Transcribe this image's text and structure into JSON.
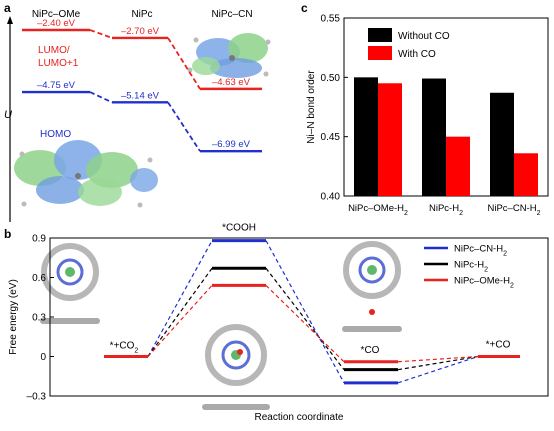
{
  "panels": {
    "a": "a",
    "b": "b",
    "c": "c"
  },
  "panel_a": {
    "y_axis_label": "U",
    "molecules": [
      "NiPc–OMe",
      "NiPc",
      "NiPc–CN"
    ],
    "lumo_label": "LUMO/\nLUMO+1",
    "homo_label": "HOMO",
    "lumo_levels": [
      {
        "molecule": "NiPc–OMe",
        "energy_eV": -2.4,
        "label": "–2.40 eV"
      },
      {
        "molecule": "NiPc",
        "energy_eV": -2.7,
        "label": "–2.70 eV"
      },
      {
        "molecule": "NiPc–CN",
        "energy_eV": -4.63,
        "label": "–4.63 eV"
      }
    ],
    "homo_levels": [
      {
        "molecule": "NiPc–OMe",
        "energy_eV": -4.75,
        "label": "–4.75 eV"
      },
      {
        "molecule": "NiPc",
        "energy_eV": -5.14,
        "label": "–5.14 eV"
      },
      {
        "molecule": "NiPc–CN",
        "energy_eV": -6.99,
        "label": "–6.99 eV"
      }
    ],
    "colors": {
      "lumo": "#e8221f",
      "homo": "#1f2fd0"
    }
  },
  "chart_data": [
    {
      "panel": "c",
      "type": "bar",
      "categories": [
        "NiPc–OMe-H2",
        "NiPc-H2",
        "NiPc–CN-H2"
      ],
      "ylabel": "Ni–N bond order",
      "xlabel": "",
      "ylim": [
        0.4,
        0.55
      ],
      "yticks": [
        0.4,
        0.45,
        0.5,
        0.55
      ],
      "ytick_labels": [
        "0.40",
        "0.45",
        "0.50",
        "0.55"
      ],
      "legend_position": "top-center",
      "series": [
        {
          "name": "Without CO",
          "color": "#000000",
          "values": [
            0.5,
            0.499,
            0.487
          ]
        },
        {
          "name": "With CO",
          "color": "#ff0000",
          "values": [
            0.495,
            0.45,
            0.436
          ]
        }
      ]
    },
    {
      "panel": "b",
      "type": "line",
      "xlabel": "Reaction coordinate",
      "ylabel": "Free energy (eV)",
      "ylim": [
        -0.3,
        0.9
      ],
      "yticks": [
        -0.3,
        0,
        0.3,
        0.6,
        0.9
      ],
      "ytick_labels": [
        "–0.3",
        "0",
        "0.3",
        "0.6",
        "0.9"
      ],
      "steps": [
        "*+CO2",
        "*COOH",
        "*CO",
        "*+CO"
      ],
      "legend_position": "top-right",
      "series": [
        {
          "name": "NiPc–CN-H2",
          "color": "#1f2fd0",
          "values": [
            0,
            0.88,
            -0.2,
            0
          ]
        },
        {
          "name": "NiPc-H2",
          "color": "#000000",
          "values": [
            0,
            0.67,
            -0.1,
            0
          ]
        },
        {
          "name": "NiPc–OMe-H2",
          "color": "#e8221f",
          "values": [
            0,
            0.54,
            -0.04,
            0
          ]
        }
      ]
    }
  ]
}
